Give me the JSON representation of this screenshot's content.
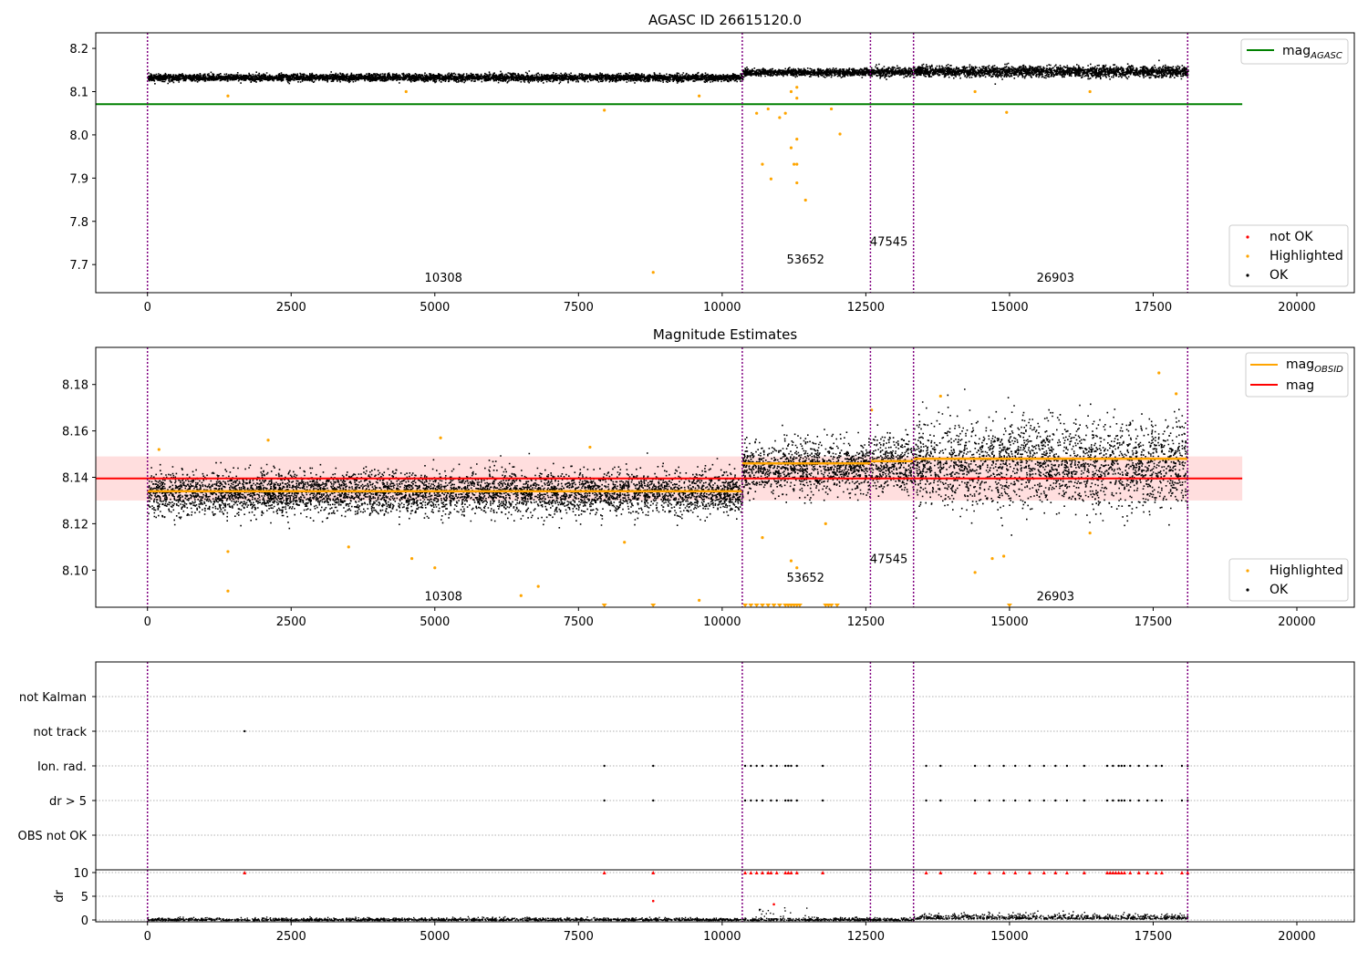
{
  "chart_data": [
    {
      "id": "panel1",
      "type": "scatter",
      "title": "AGASC ID 26615120.0",
      "xlim": [
        -900,
        21000
      ],
      "ylim": [
        7.635,
        8.236
      ],
      "xticks": [
        0,
        2500,
        5000,
        7500,
        10000,
        12500,
        15000,
        17500,
        20000
      ],
      "yticks": [
        7.7,
        7.8,
        7.9,
        8.0,
        8.1,
        8.2
      ],
      "ytick_labels": [
        "7.7",
        "7.8",
        "7.9",
        "8.0",
        "8.1",
        "8.2"
      ],
      "vlines": [
        0,
        10350,
        12580,
        13330,
        18100
      ],
      "hline": {
        "y": 8.071,
        "x_end": 19050,
        "color": "#008000"
      },
      "segments": [
        {
          "start": 0,
          "end": 10350,
          "level": 8.134,
          "spread": 0.004,
          "next_level": 8.134
        },
        {
          "start": 10350,
          "end": 12580,
          "level": 8.146,
          "spread": 0.004
        },
        {
          "start": 12580,
          "end": 13330,
          "level": 8.147,
          "spread": 0.005
        },
        {
          "start": 13330,
          "end": 18100,
          "level": 8.148,
          "spread": 0.006
        }
      ],
      "segment_labels": [
        {
          "x": 5150,
          "y": 7.66,
          "text": "10308"
        },
        {
          "x": 11450,
          "y": 7.702,
          "text": "53652"
        },
        {
          "x": 12900,
          "y": 7.744,
          "text": "47545"
        },
        {
          "x": 15800,
          "y": 7.66,
          "text": "26903"
        }
      ],
      "highlighted_points": [
        [
          8800,
          7.682
        ],
        [
          10850,
          7.898
        ],
        [
          10700,
          7.932
        ],
        [
          11200,
          7.97
        ],
        [
          11300,
          7.99
        ],
        [
          11250,
          7.932
        ],
        [
          11300,
          7.932
        ],
        [
          11300,
          7.889
        ],
        [
          11450,
          7.849
        ],
        [
          11100,
          8.05
        ],
        [
          11200,
          8.1
        ],
        [
          11300,
          8.11
        ],
        [
          10600,
          8.05
        ],
        [
          10800,
          8.06
        ],
        [
          11900,
          8.06
        ],
        [
          12050,
          8.002
        ],
        [
          11000,
          8.04
        ],
        [
          7950,
          8.057
        ],
        [
          14950,
          8.052
        ],
        [
          11300,
          8.085
        ],
        [
          1400,
          8.09
        ],
        [
          4500,
          8.1
        ],
        [
          9600,
          8.09
        ],
        [
          16400,
          8.1
        ],
        [
          14400,
          8.1
        ]
      ],
      "legend": {
        "lines": [
          {
            "label": "mag",
            "subscript": "AGASC",
            "color": "#008000"
          }
        ],
        "markers": [
          {
            "label": "not OK",
            "color": "#ff0000"
          },
          {
            "label": "Highlighted",
            "color": "#ffa500"
          },
          {
            "label": "OK",
            "color": "#000000"
          }
        ]
      }
    },
    {
      "id": "panel2",
      "type": "scatter",
      "title": "Magnitude Estimates",
      "xlim": [
        -900,
        21000
      ],
      "ylim": [
        8.084,
        8.196
      ],
      "xticks": [
        0,
        2500,
        5000,
        7500,
        10000,
        12500,
        15000,
        17500,
        20000
      ],
      "yticks": [
        8.1,
        8.12,
        8.14,
        8.16,
        8.18
      ],
      "ytick_labels": [
        "8.10",
        "8.12",
        "8.14",
        "8.16",
        "8.18"
      ],
      "vlines": [
        0,
        10350,
        12580,
        13330,
        18100
      ],
      "band": {
        "y0": 8.13,
        "y1": 8.149,
        "x_end": 19050
      },
      "mag_line": {
        "y": 8.1395,
        "x_end": 19050,
        "color": "#ff0000"
      },
      "obsid_lines": [
        {
          "x0": 0,
          "x1": 10350,
          "y": 8.134
        },
        {
          "x0": 10350,
          "x1": 12580,
          "y": 8.146
        },
        {
          "x0": 12580,
          "x1": 13330,
          "y": 8.147
        },
        {
          "x0": 13330,
          "x1": 18100,
          "y": 8.148
        }
      ],
      "segments": [
        {
          "start": 0,
          "end": 10350,
          "level": 8.1335,
          "spread": 0.0045
        },
        {
          "start": 10350,
          "end": 12580,
          "level": 8.1445,
          "spread": 0.0055
        },
        {
          "start": 12580,
          "end": 13330,
          "level": 8.146,
          "spread": 0.006
        },
        {
          "start": 13330,
          "end": 18100,
          "level": 8.146,
          "spread": 0.009
        }
      ],
      "segment_labels": [
        {
          "x": 5150,
          "y": 8.087,
          "text": "10308"
        },
        {
          "x": 11450,
          "y": 8.095,
          "text": "53652"
        },
        {
          "x": 12900,
          "y": 8.103,
          "text": "47545"
        },
        {
          "x": 15800,
          "y": 8.087,
          "text": "26903"
        }
      ],
      "highlighted_points": [
        [
          1400,
          8.108
        ],
        [
          1400,
          8.091
        ],
        [
          4600,
          8.105
        ],
        [
          5000,
          8.101
        ],
        [
          6500,
          8.089
        ],
        [
          6800,
          8.093
        ],
        [
          9600,
          8.087
        ],
        [
          10700,
          8.114
        ],
        [
          11200,
          8.104
        ],
        [
          11300,
          8.101
        ],
        [
          11800,
          8.12
        ],
        [
          14400,
          8.099
        ],
        [
          14700,
          8.105
        ],
        [
          14900,
          8.106
        ],
        [
          16400,
          8.116
        ],
        [
          17600,
          8.185
        ],
        [
          2100,
          8.156
        ],
        [
          5100,
          8.157
        ],
        [
          7700,
          8.153
        ],
        [
          12600,
          8.169
        ],
        [
          13800,
          8.175
        ],
        [
          17900,
          8.176
        ],
        [
          200,
          8.152
        ],
        [
          3500,
          8.11
        ],
        [
          8300,
          8.112
        ]
      ],
      "edge_points_x": [
        7950,
        8800,
        10400,
        10500,
        10600,
        10700,
        10800,
        10900,
        11000,
        11100,
        11150,
        11200,
        11250,
        11300,
        11350,
        11800,
        11850,
        11900,
        12000,
        15000
      ],
      "legend": {
        "lines": [
          {
            "label": "mag",
            "subscript": "OBSID",
            "color": "#ffa500"
          },
          {
            "label": "mag",
            "subscript": "",
            "color": "#ff0000"
          }
        ],
        "markers": [
          {
            "label": "Highlighted",
            "color": "#ffa500"
          },
          {
            "label": "OK",
            "color": "#000000"
          }
        ]
      }
    },
    {
      "id": "panel3",
      "type": "scatter",
      "xlim": [
        -900,
        21000
      ],
      "vlines": [
        0,
        10350,
        12580,
        13330,
        18100
      ],
      "flag_labels": [
        "not Kalman",
        "not track",
        "Ion. rad.",
        "dr > 5",
        "OBS not OK"
      ],
      "flag_points": {
        "not track": [
          1690
        ],
        "Ion. rad.": [
          7950,
          8800,
          10400,
          10500,
          10600,
          10700,
          10850,
          10950,
          11100,
          11150,
          11200,
          11300,
          11750,
          13550,
          13800,
          14400,
          14650,
          14900,
          15100,
          15350,
          15600,
          15800,
          16000,
          16300,
          16700,
          16800,
          16900,
          16950,
          17000,
          17100,
          17250,
          17400,
          17550,
          17650,
          18000,
          18100
        ],
        "dr > 5": [
          7950,
          8800,
          10400,
          10500,
          10600,
          10700,
          10850,
          10950,
          11100,
          11150,
          11200,
          11300,
          11750,
          13550,
          13800,
          14400,
          14650,
          14900,
          15100,
          15350,
          15600,
          15800,
          16000,
          16300,
          16700,
          16800,
          16900,
          16950,
          17000,
          17100,
          17250,
          17400,
          17550,
          17650,
          18000,
          18100
        ]
      },
      "dr_axis": {
        "ylabel": "dr",
        "ylim": [
          -0.5,
          10.6
        ],
        "yticks": [
          0,
          5,
          10
        ],
        "ytick_labels": [
          "0",
          "5",
          "10"
        ],
        "red_points_x": [
          1690,
          7950,
          8800,
          10400,
          10500,
          10600,
          10700,
          10800,
          10850,
          10950,
          11100,
          11150,
          11200,
          11300,
          11750,
          13550,
          13800,
          14400,
          14650,
          14900,
          15100,
          15350,
          15600,
          15800,
          16000,
          16300,
          16700,
          16750,
          16800,
          16850,
          16900,
          16950,
          17000,
          17100,
          17250,
          17400,
          17550,
          17650,
          18000,
          18100
        ],
        "extra_red": [
          [
            8800,
            4.0
          ],
          [
            10900,
            3.3
          ]
        ]
      },
      "xticks": [
        0,
        2500,
        5000,
        7500,
        10000,
        12500,
        15000,
        17500,
        20000
      ]
    }
  ]
}
